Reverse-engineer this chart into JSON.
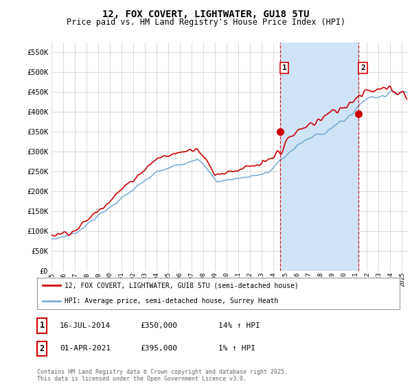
{
  "title": "12, FOX COVERT, LIGHTWATER, GU18 5TU",
  "subtitle": "Price paid vs. HM Land Registry's House Price Index (HPI)",
  "ylabel_ticks": [
    "£0",
    "£50K",
    "£100K",
    "£150K",
    "£200K",
    "£250K",
    "£300K",
    "£350K",
    "£400K",
    "£450K",
    "£500K",
    "£550K"
  ],
  "ytick_values": [
    0,
    50000,
    100000,
    150000,
    200000,
    250000,
    300000,
    350000,
    400000,
    450000,
    500000,
    550000
  ],
  "ylim": [
    0,
    575000
  ],
  "xlim_start": 1995.0,
  "xlim_end": 2025.5,
  "xtick_years": [
    1995,
    1996,
    1997,
    1998,
    1999,
    2000,
    2001,
    2002,
    2003,
    2004,
    2005,
    2006,
    2007,
    2008,
    2009,
    2010,
    2011,
    2012,
    2013,
    2014,
    2015,
    2016,
    2017,
    2018,
    2019,
    2020,
    2021,
    2022,
    2023,
    2024,
    2025
  ],
  "transaction1_x": 2014.54,
  "transaction1_y": 350000,
  "transaction1_label": "1",
  "transaction2_x": 2021.25,
  "transaction2_y": 395000,
  "transaction2_label": "2",
  "marker_color": "#cc0000",
  "vline_color": "#cc0000",
  "hpi_color": "#7bafd4",
  "price_color": "#cc0000",
  "span_color": "#d0e4f5",
  "legend_label_price": "12, FOX COVERT, LIGHTWATER, GU18 5TU (semi-detached house)",
  "legend_label_hpi": "HPI: Average price, semi-detached house, Surrey Heath",
  "table_rows": [
    {
      "num": "1",
      "date": "16-JUL-2014",
      "price": "£350,000",
      "hpi": "14% ↑ HPI"
    },
    {
      "num": "2",
      "date": "01-APR-2021",
      "price": "£395,000",
      "hpi": "1% ↑ HPI"
    }
  ],
  "footer": "Contains HM Land Registry data © Crown copyright and database right 2025.\nThis data is licensed under the Open Government Licence v3.0.",
  "background_color": "#ffffff",
  "grid_color": "#cccccc"
}
